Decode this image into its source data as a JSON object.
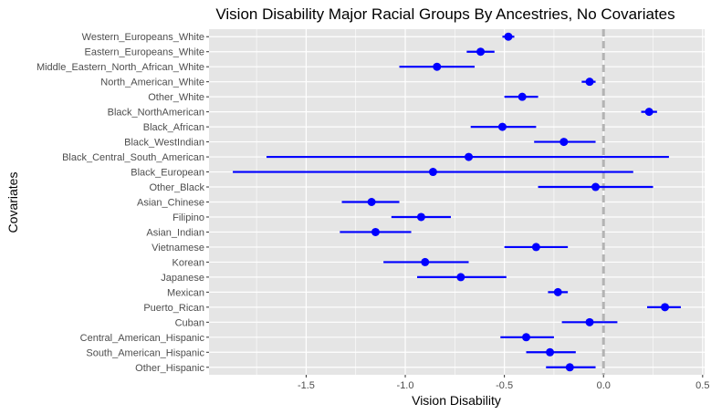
{
  "chart_data": {
    "type": "scatter",
    "title": "Vision Disability Major Racial Groups By Ancestries, No Covariates",
    "xlabel": "Vision Disability",
    "ylabel": "Covariates",
    "xlim": [
      -1.99,
      0.51
    ],
    "x_ticks": [
      -1.5,
      -1.0,
      -0.5,
      0.0,
      0.5
    ],
    "x_tick_labels": [
      "-1.5",
      "-1.0",
      "-0.5",
      "0.0",
      "0.5"
    ],
    "reference_line": 0,
    "grid": true,
    "point_color": "#0000ff",
    "reference_line_color": "#b3b3b3",
    "panel_background": "#e5e5e5",
    "categories": [
      "Western_Europeans_White",
      "Eastern_Europeans_White",
      "Middle_Eastern_North_African_White",
      "North_American_White",
      "Other_White",
      "Black_NorthAmerican",
      "Black_African",
      "Black_WestIndian",
      "Black_Central_South_American",
      "Black_European",
      "Other_Black",
      "Asian_Chinese",
      "Filipino",
      "Asian_Indian",
      "Vietnamese",
      "Korean",
      "Japanese",
      "Mexican",
      "Puerto_Rican",
      "Cuban",
      "Central_American_Hispanic",
      "South_American_Hispanic",
      "Other_Hispanic"
    ],
    "estimates": [
      -0.48,
      -0.62,
      -0.84,
      -0.07,
      -0.41,
      0.23,
      -0.51,
      -0.2,
      -0.68,
      -0.86,
      -0.04,
      -1.17,
      -0.92,
      -1.15,
      -0.34,
      -0.9,
      -0.72,
      -0.23,
      0.31,
      -0.07,
      -0.39,
      -0.27,
      -0.17
    ],
    "lower": [
      -0.51,
      -0.69,
      -1.03,
      -0.11,
      -0.5,
      0.19,
      -0.67,
      -0.35,
      -1.7,
      -1.87,
      -0.33,
      -1.32,
      -1.07,
      -1.33,
      -0.5,
      -1.11,
      -0.94,
      -0.28,
      0.22,
      -0.21,
      -0.52,
      -0.39,
      -0.29
    ],
    "upper": [
      -0.45,
      -0.55,
      -0.65,
      -0.04,
      -0.33,
      0.27,
      -0.34,
      -0.04,
      0.33,
      0.15,
      0.25,
      -1.03,
      -0.77,
      -0.97,
      -0.18,
      -0.68,
      -0.49,
      -0.18,
      0.39,
      0.07,
      -0.25,
      -0.14,
      -0.04
    ]
  }
}
